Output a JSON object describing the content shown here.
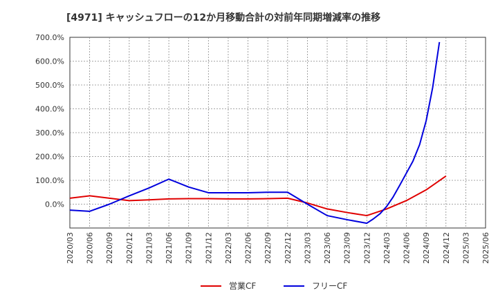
{
  "chart_data": {
    "type": "line",
    "title": "[4971]  キャッシュフローの12か月移動合計の対前年同期増減率の推移",
    "xlabel": "",
    "ylabel": "",
    "ylim": [
      -100,
      700
    ],
    "y_ticks": [
      0,
      100,
      200,
      300,
      400,
      500,
      600,
      700
    ],
    "y_tick_labels": [
      "0.0%",
      "100.0%",
      "200.0%",
      "300.0%",
      "400.0%",
      "500.0%",
      "600.0%",
      "700.0%"
    ],
    "x_tick_labels": [
      "2020/03",
      "2020/06",
      "2020/09",
      "2020/12",
      "2021/03",
      "2021/06",
      "2021/09",
      "2021/12",
      "2022/03",
      "2022/06",
      "2022/09",
      "2022/12",
      "2023/03",
      "2023/06",
      "2023/09",
      "2023/12",
      "2024/03",
      "2024/06",
      "2024/09",
      "2024/12",
      "2025/03",
      "2025/06"
    ],
    "grid": true,
    "legend_position": "bottom",
    "series": [
      {
        "name": "営業CF",
        "color": "#e00000",
        "points": [
          [
            0,
            25
          ],
          [
            1,
            35
          ],
          [
            2,
            25
          ],
          [
            3,
            15
          ],
          [
            4,
            18
          ],
          [
            5,
            22
          ],
          [
            6,
            23
          ],
          [
            7,
            23
          ],
          [
            8,
            22
          ],
          [
            9,
            22
          ],
          [
            10,
            23
          ],
          [
            11,
            25
          ],
          [
            12,
            5
          ],
          [
            13,
            -20
          ],
          [
            14,
            -35
          ],
          [
            15,
            -48
          ],
          [
            16,
            -20
          ],
          [
            17,
            15
          ],
          [
            18,
            60
          ],
          [
            19,
            118
          ]
        ]
      },
      {
        "name": "フリーCF",
        "color": "#0000dd",
        "points": [
          [
            0,
            -25
          ],
          [
            1,
            -30
          ],
          [
            2,
            0
          ],
          [
            3,
            35
          ],
          [
            4,
            68
          ],
          [
            5,
            105
          ],
          [
            6,
            72
          ],
          [
            7,
            48
          ],
          [
            8,
            48
          ],
          [
            9,
            48
          ],
          [
            10,
            50
          ],
          [
            11,
            50
          ],
          [
            12,
            0
          ],
          [
            13,
            -48
          ],
          [
            14,
            -65
          ],
          [
            15,
            -80
          ],
          [
            15.33,
            -62
          ],
          [
            15.67,
            -40
          ],
          [
            16,
            -10
          ],
          [
            16.33,
            30
          ],
          [
            16.67,
            80
          ],
          [
            17,
            130
          ],
          [
            17.33,
            180
          ],
          [
            17.67,
            250
          ],
          [
            18,
            350
          ],
          [
            18.33,
            490
          ],
          [
            18.67,
            680
          ]
        ]
      }
    ]
  }
}
